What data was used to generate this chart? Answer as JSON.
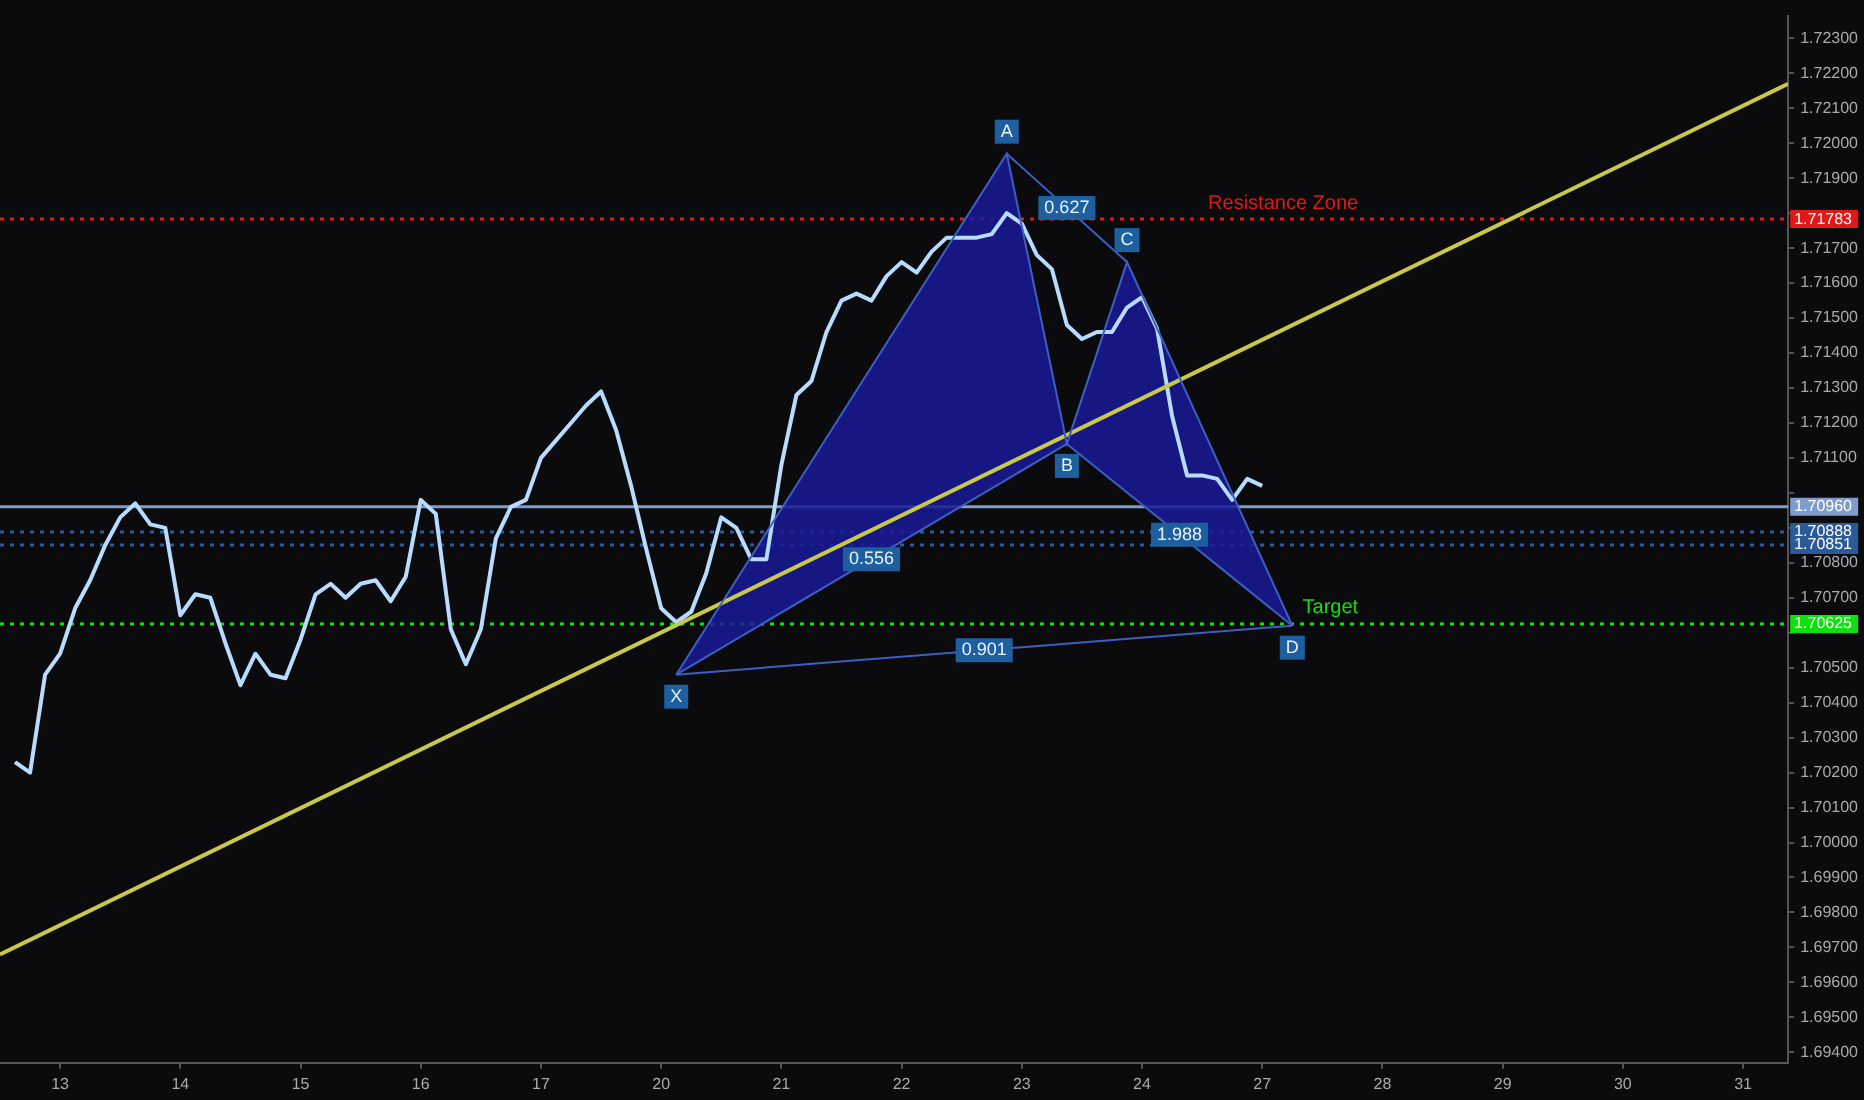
{
  "chart_data": {
    "type": "line",
    "categories": [
      null,
      null,
      null,
      null,
      "13",
      null,
      null,
      null,
      null,
      null,
      null,
      null,
      "14",
      null,
      null,
      null,
      null,
      null,
      null,
      null,
      "15",
      null,
      null,
      null,
      null,
      null,
      null,
      null,
      "16",
      null,
      null,
      null,
      null,
      null,
      null,
      null,
      "17",
      null,
      null,
      null,
      null,
      null,
      null,
      null,
      "20",
      null,
      null,
      null,
      null,
      null,
      null,
      null,
      "21",
      null,
      null,
      null,
      null,
      null,
      null,
      null,
      "22",
      null,
      null,
      null,
      null,
      null,
      null,
      null,
      "23",
      null,
      null,
      null,
      null,
      null,
      null,
      null,
      "24",
      null,
      null,
      null,
      null,
      null,
      null,
      null,
      "27",
      null,
      null,
      null,
      null,
      null,
      null,
      null,
      "28",
      null,
      null,
      null,
      null,
      null,
      null,
      null,
      "29",
      null,
      null,
      null,
      null,
      null,
      null,
      null,
      "30",
      null,
      null,
      null,
      null,
      null,
      null,
      null,
      "31",
      null,
      null,
      null
    ],
    "ylim": [
      1.6937,
      1.72365
    ],
    "yticks": [
      {
        "value": 1.694,
        "label": "1.69400"
      },
      {
        "value": 1.695,
        "label": "1.69500"
      },
      {
        "value": 1.696,
        "label": "1.69600"
      },
      {
        "value": 1.697,
        "label": "1.69700"
      },
      {
        "value": 1.698,
        "label": "1.69800"
      },
      {
        "value": 1.699,
        "label": "1.69900"
      },
      {
        "value": 1.7,
        "label": "1.70000"
      },
      {
        "value": 1.701,
        "label": "1.70100"
      },
      {
        "value": 1.702,
        "label": "1.70200"
      },
      {
        "value": 1.703,
        "label": "1.70300"
      },
      {
        "value": 1.704,
        "label": "1.70400"
      },
      {
        "value": 1.705,
        "label": "1.70500"
      },
      {
        "value": 1.706,
        "label": null
      },
      {
        "value": 1.707,
        "label": "1.70700"
      },
      {
        "value": 1.708,
        "label": "1.70800"
      },
      {
        "value": 1.709,
        "label": null
      },
      {
        "value": 1.71,
        "label": null
      },
      {
        "value": 1.711,
        "label": "1.71100"
      },
      {
        "value": 1.712,
        "label": "1.71200"
      },
      {
        "value": 1.713,
        "label": "1.71300"
      },
      {
        "value": 1.714,
        "label": "1.71400"
      },
      {
        "value": 1.715,
        "label": "1.71500"
      },
      {
        "value": 1.716,
        "label": "1.71600"
      },
      {
        "value": 1.717,
        "label": "1.71700"
      },
      {
        "value": 1.718,
        "label": null
      },
      {
        "value": 1.719,
        "label": "1.71900"
      },
      {
        "value": 1.72,
        "label": "1.72000"
      },
      {
        "value": 1.721,
        "label": "1.72100"
      },
      {
        "value": 1.722,
        "label": "1.72200"
      },
      {
        "value": 1.723,
        "label": "1.72300"
      }
    ],
    "grid": false,
    "legend": false,
    "marker": "none",
    "series": [
      {
        "type": "area",
        "color": "#1a1a9a",
        "values": [
          null,
          null,
          null,
          null,
          null,
          null,
          null,
          null,
          null,
          null,
          null,
          null,
          null,
          null,
          null,
          null,
          null,
          null,
          null,
          null,
          null,
          null,
          null,
          null,
          null,
          null,
          null,
          null,
          null,
          null,
          null,
          null,
          null,
          null,
          null,
          null,
          null,
          null,
          null,
          null,
          null,
          null,
          null,
          null,
          null,
          1.7048,
          null,
          null,
          null,
          null,
          null,
          null,
          null,
          null,
          null,
          null,
          null,
          null,
          null,
          null,
          null,
          null,
          null,
          null,
          null,
          null,
          null,
          1.7197,
          null,
          null,
          null,
          1.7114,
          null,
          null,
          null,
          1.7166,
          null,
          null,
          null,
          null,
          null,
          null,
          null,
          null,
          null,
          null,
          1.7062,
          null,
          null,
          null,
          null,
          null,
          null,
          null,
          null,
          null,
          null,
          null,
          null,
          null,
          null,
          null,
          null,
          null,
          null,
          null,
          null,
          null,
          null,
          null,
          null,
          null,
          null,
          null,
          null,
          null,
          null,
          null,
          null,
          null
        ],
        "value_labels": [
          null,
          null,
          null,
          null,
          null,
          null,
          null,
          null,
          null,
          null,
          null,
          null,
          null,
          null,
          null,
          null,
          null,
          null,
          null,
          null,
          null,
          null,
          null,
          null,
          null,
          null,
          null,
          null,
          null,
          null,
          null,
          null,
          null,
          null,
          null,
          null,
          null,
          null,
          null,
          null,
          null,
          null,
          null,
          null,
          null,
          "X",
          null,
          null,
          null,
          null,
          null,
          null,
          null,
          null,
          null,
          null,
          null,
          null,
          null,
          null,
          null,
          null,
          null,
          null,
          null,
          null,
          null,
          "A",
          null,
          null,
          null,
          "B",
          null,
          null,
          null,
          "C",
          null,
          null,
          null,
          null,
          null,
          null,
          null,
          null,
          null,
          null,
          "D",
          null,
          null,
          null,
          null,
          null,
          null,
          null,
          null,
          null,
          null,
          null,
          null,
          null,
          null,
          null,
          null,
          null,
          null,
          null,
          null,
          null,
          null,
          null,
          null,
          null,
          null,
          null,
          null,
          null,
          null,
          null,
          null,
          null
        ]
      },
      {
        "color": "#c8c84a",
        "values": [
          1.6968,
          null,
          null,
          null,
          null,
          null,
          null,
          null,
          null,
          null,
          null,
          null,
          null,
          null,
          null,
          null,
          null,
          null,
          null,
          null,
          null,
          null,
          null,
          null,
          null,
          null,
          null,
          null,
          null,
          null,
          null,
          null,
          null,
          null,
          null,
          null,
          null,
          null,
          null,
          null,
          null,
          null,
          null,
          null,
          null,
          null,
          null,
          null,
          null,
          null,
          null,
          null,
          null,
          null,
          null,
          null,
          null,
          null,
          null,
          null,
          null,
          null,
          null,
          null,
          null,
          null,
          null,
          null,
          null,
          null,
          null,
          null,
          null,
          null,
          null,
          null,
          null,
          null,
          null,
          null,
          null,
          null,
          null,
          null,
          null,
          null,
          null,
          null,
          null,
          null,
          null,
          null,
          null,
          null,
          null,
          null,
          null,
          null,
          null,
          null,
          null,
          null,
          null,
          null,
          null,
          null,
          null,
          null,
          null,
          null,
          null,
          null,
          null,
          null,
          null,
          null,
          null,
          null,
          null,
          1.7217
        ]
      },
      {
        "color": "#b8dcff",
        "values": [
          null,
          1.7023,
          1.702,
          1.7048,
          1.7054,
          1.7067,
          1.7075,
          1.7085,
          1.7093,
          1.7097,
          1.7091,
          1.709,
          1.7065,
          1.7071,
          1.707,
          1.7057,
          1.7045,
          1.7054,
          1.7048,
          1.7047,
          1.7058,
          1.7071,
          1.7074,
          1.707,
          1.7074,
          1.7075,
          1.7069,
          1.7076,
          1.7098,
          1.7094,
          1.7061,
          1.7051,
          1.7061,
          1.7087,
          1.7096,
          1.7098,
          1.711,
          1.7115,
          1.712,
          1.7125,
          1.7129,
          1.7118,
          1.7102,
          1.7084,
          1.7067,
          1.7063,
          1.7066,
          1.7077,
          1.7093,
          1.709,
          1.7081,
          1.7081,
          1.7108,
          1.7128,
          1.7132,
          1.7146,
          1.7155,
          1.7157,
          1.7155,
          1.7162,
          1.7166,
          1.7163,
          1.7169,
          1.7173,
          1.7173,
          1.7173,
          1.7174,
          1.718,
          1.7177,
          1.7168,
          1.7164,
          1.7148,
          1.7144,
          1.7146,
          1.7146,
          1.7153,
          1.7156,
          1.7147,
          1.7122,
          1.7105,
          1.7105,
          1.7104,
          1.7098,
          1.7104,
          1.7102,
          null,
          null,
          null,
          null,
          null,
          null,
          null,
          null,
          null,
          null,
          null,
          null,
          null,
          null,
          null,
          null,
          null,
          null,
          null,
          null,
          null,
          null,
          null,
          null,
          null,
          null,
          null,
          null,
          null,
          null,
          null,
          null,
          null,
          null,
          null
        ]
      }
    ],
    "ref_lines": [
      {
        "axis": "y",
        "value": 1.71783,
        "label": "1.71783",
        "color": "#e01818",
        "line_style": "dotted"
      },
      {
        "axis": "y",
        "value": 1.7096,
        "label": "1.70960",
        "color": "#7f9ccc",
        "line_style": "solid"
      },
      {
        "axis": "y",
        "value": 1.70888,
        "label": "1.70888",
        "color": "#2a5a9a",
        "line_style": "dotted"
      },
      {
        "axis": "y",
        "value": 1.70851,
        "label": "1.70851",
        "color": "#2a5a9a",
        "line_style": "dotted"
      },
      {
        "axis": "y",
        "value": 1.70625,
        "label": "1.70625",
        "color": "#10e010",
        "line_style": "dotted"
      }
    ],
    "annotations": [
      "0.556",
      "0.627",
      "1.988",
      "0.901",
      {
        "text": "Resistance Zone",
        "y": 1.71783
      },
      {
        "text": "Target",
        "y": 1.70625
      }
    ]
  }
}
